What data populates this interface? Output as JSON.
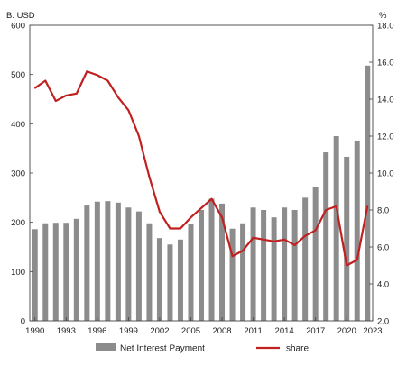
{
  "chart_data": {
    "type": "bar",
    "title": "",
    "left_axis_label": "B. USD",
    "right_axis_label": "%",
    "x": [
      1990,
      1991,
      1992,
      1993,
      1994,
      1995,
      1996,
      1997,
      1998,
      1999,
      2000,
      2001,
      2002,
      2003,
      2004,
      2005,
      2006,
      2007,
      2008,
      2009,
      2010,
      2011,
      2012,
      2013,
      2014,
      2015,
      2016,
      2017,
      2018,
      2019,
      2020,
      2021,
      2022
    ],
    "x_tick_labels": [
      "1990",
      "1993",
      "1996",
      "1999",
      "2002",
      "2005",
      "2008",
      "2011",
      "2014",
      "2017",
      "2020",
      "2023"
    ],
    "y_left_ticks": [
      "0",
      "100",
      "200",
      "300",
      "400",
      "500",
      "600"
    ],
    "y_left_lim": [
      0,
      600
    ],
    "y_right_ticks": [
      "2.0",
      "4.0",
      "6.0",
      "8.0",
      "10.0",
      "12.0",
      "14.0",
      "16.0",
      "18.0"
    ],
    "y_right_lim": [
      2.0,
      18.0
    ],
    "grid": false,
    "legend_position": "bottom",
    "series": [
      {
        "name": "Net Interest Payment",
        "type": "bar",
        "axis": "left",
        "color": "#8c8c8c",
        "values": [
          186,
          198,
          199,
          199,
          207,
          234,
          242,
          243,
          240,
          230,
          222,
          198,
          168,
          155,
          165,
          196,
          225,
          248,
          238,
          187,
          198,
          230,
          225,
          210,
          230,
          225,
          250,
          272,
          342,
          375,
          333,
          366,
          518
        ]
      },
      {
        "name": "share",
        "type": "line",
        "axis": "right",
        "color": "#c0201f",
        "values": [
          14.6,
          15.0,
          13.9,
          14.2,
          14.3,
          15.5,
          15.3,
          15.0,
          14.1,
          13.4,
          12.0,
          9.8,
          7.9,
          7.0,
          7.0,
          7.6,
          8.1,
          8.6,
          7.6,
          5.5,
          5.8,
          6.5,
          6.4,
          6.3,
          6.4,
          6.1,
          6.6,
          6.9,
          8.0,
          8.2,
          5.0,
          5.3,
          8.2
        ]
      }
    ]
  }
}
